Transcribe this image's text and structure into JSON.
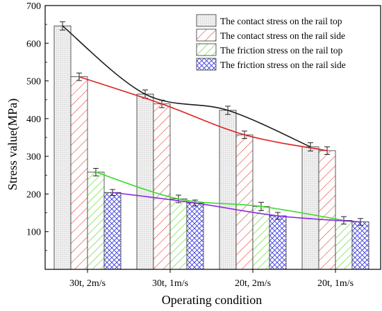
{
  "chart_data": {
    "type": "bar",
    "xlabel": "Operating condition",
    "ylabel": "Stress value(MPa)",
    "ylim": [
      0,
      700
    ],
    "yticks": [
      100,
      200,
      300,
      400,
      500,
      600,
      700
    ],
    "grid": false,
    "legend_position": "top-right",
    "categories": [
      "30t, 2m/s",
      "30t, 1m/s",
      "20t, 2m/s",
      "20t, 1m/s"
    ],
    "series": [
      {
        "name": "The contact stress on the rail top",
        "values": [
          646,
          465,
          422,
          325
        ],
        "errors": [
          11,
          11,
          11,
          11
        ],
        "fill": "grid",
        "color": "#000000",
        "line_color": "#1a1a1a"
      },
      {
        "name": "The contact stress on the rail side",
        "values": [
          511,
          439,
          357,
          315
        ],
        "errors": [
          10,
          10,
          10,
          10
        ],
        "fill": "diagonal",
        "color": "#e8403a",
        "line_color": "#e21f1f"
      },
      {
        "name": "The friction stress on the rail top",
        "values": [
          258,
          187,
          167,
          130
        ],
        "errors": [
          10,
          10,
          11,
          10
        ],
        "fill": "diagonal",
        "color": "#6ad93a",
        "line_color": "#3ddc2c"
      },
      {
        "name": "The friction stress on the rail side",
        "values": [
          204,
          176,
          142,
          126
        ],
        "errors": [
          8,
          8,
          9,
          9
        ],
        "fill": "crosshatch",
        "color": "#3a3adf",
        "line_color": "#8a2be2"
      }
    ]
  }
}
